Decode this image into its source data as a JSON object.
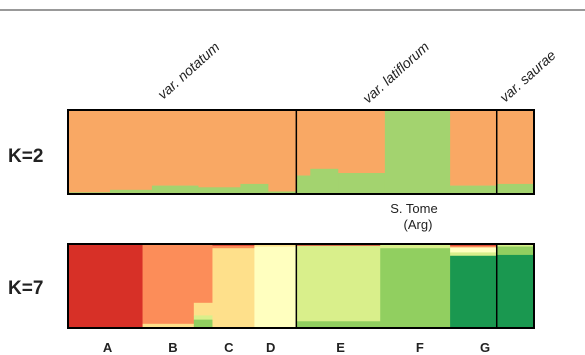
{
  "chart_data": {
    "type": "bar",
    "varieties": [
      {
        "label": "var. notatum"
      },
      {
        "label": "var. latiflorum"
      },
      {
        "label": "var. saurae"
      }
    ],
    "variety_breaks": [
      0.49,
      0.92
    ],
    "annotation": {
      "line1": "S. Tome",
      "line2": "(Arg)"
    },
    "group_labels": [
      "A",
      "B",
      "C",
      "D",
      "E",
      "F",
      "G"
    ],
    "group_label_positions": [
      0.085,
      0.225,
      0.345,
      0.435,
      0.585,
      0.755,
      0.895
    ],
    "panels": [
      {
        "label": "K=2",
        "cluster_colors": [
          "#F9A864",
          "#A3D36F"
        ],
        "segments": [
          {
            "end": 0.09,
            "values": [
              0.98,
              0.02
            ]
          },
          {
            "end": 0.18,
            "values": [
              0.95,
              0.05
            ]
          },
          {
            "end": 0.28,
            "values": [
              0.9,
              0.1
            ]
          },
          {
            "end": 0.37,
            "values": [
              0.92,
              0.08
            ]
          },
          {
            "end": 0.43,
            "values": [
              0.88,
              0.12
            ]
          },
          {
            "end": 0.49,
            "values": [
              0.97,
              0.03
            ]
          },
          {
            "end": 0.52,
            "values": [
              0.78,
              0.22
            ]
          },
          {
            "end": 0.58,
            "values": [
              0.7,
              0.3
            ]
          },
          {
            "end": 0.68,
            "values": [
              0.75,
              0.25
            ]
          },
          {
            "end": 0.82,
            "values": [
              0.0,
              1.0
            ]
          },
          {
            "end": 0.92,
            "values": [
              0.9,
              0.1
            ]
          },
          {
            "end": 1.0,
            "values": [
              0.88,
              0.12
            ]
          }
        ]
      },
      {
        "label": "K=7",
        "cluster_colors": [
          "#D73027",
          "#FC8D59",
          "#FEE08B",
          "#FFFFBF",
          "#D9EF8B",
          "#91CF60",
          "#1A9850"
        ],
        "segments": [
          {
            "end": 0.16,
            "values": [
              1.0,
              0,
              0,
              0,
              0,
              0,
              0
            ]
          },
          {
            "end": 0.27,
            "values": [
              0,
              0.95,
              0.05,
              0,
              0,
              0,
              0
            ]
          },
          {
            "end": 0.31,
            "values": [
              0,
              0.7,
              0.15,
              0,
              0.05,
              0.1,
              0
            ]
          },
          {
            "end": 0.4,
            "values": [
              0.02,
              0.03,
              0.95,
              0,
              0,
              0,
              0
            ]
          },
          {
            "end": 0.49,
            "values": [
              0.01,
              0,
              0.02,
              0.97,
              0,
              0,
              0
            ]
          },
          {
            "end": 0.67,
            "values": [
              0.02,
              0,
              0,
              0,
              0.9,
              0.08,
              0
            ]
          },
          {
            "end": 0.82,
            "values": [
              0,
              0,
              0,
              0,
              0.05,
              0.95,
              0
            ]
          },
          {
            "end": 0.92,
            "values": [
              0.02,
              0.02,
              0,
              0.06,
              0.04,
              0,
              0.86
            ]
          },
          {
            "end": 1.0,
            "values": [
              0,
              0,
              0,
              0,
              0.03,
              0.1,
              0.87
            ]
          }
        ]
      }
    ]
  }
}
